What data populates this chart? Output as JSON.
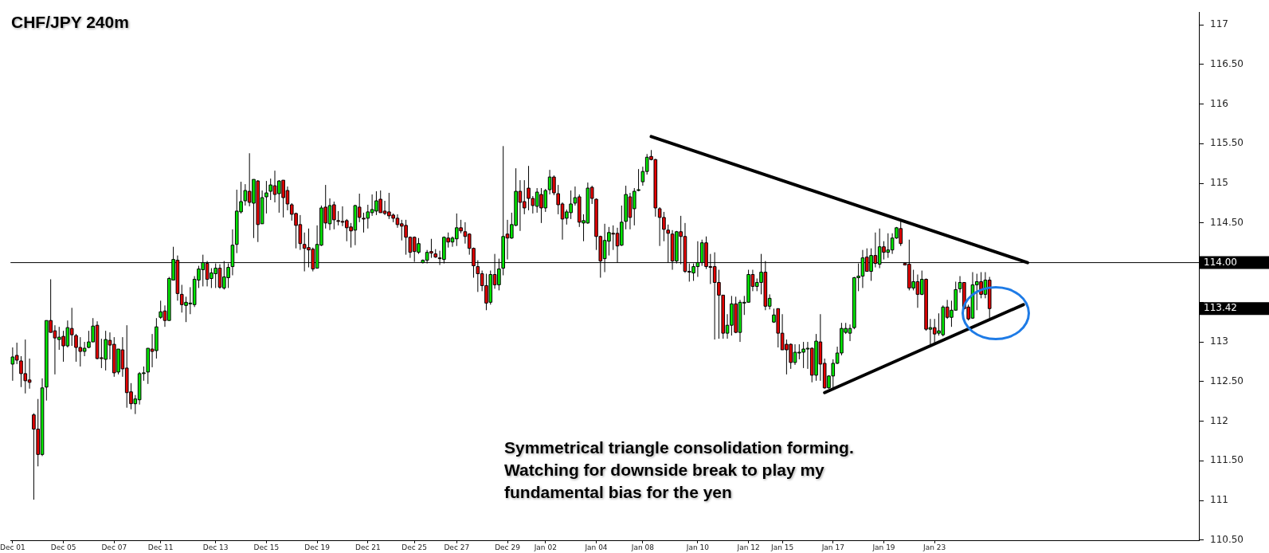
{
  "chart_data": {
    "type": "candlestick",
    "title": "CHF/JPY 240m",
    "annotations": [
      "Symmetrical triangle consolidation forming. Watching for downside break to play my fundamental bias for the yen",
      "113.42"
    ],
    "categories": [
      "Dec 01",
      null,
      null,
      null,
      null,
      null,
      null,
      null,
      null,
      null,
      null,
      null,
      "Dec 05",
      null,
      null,
      null,
      null,
      null,
      null,
      null,
      null,
      null,
      null,
      null,
      "Dec 07",
      null,
      null,
      null,
      null,
      null,
      null,
      null,
      null,
      null,
      null,
      "Dec 11",
      null,
      null,
      null,
      null,
      null,
      null,
      null,
      null,
      null,
      null,
      null,
      null,
      "Dec 13",
      null,
      null,
      null,
      null,
      null,
      null,
      null,
      null,
      null,
      null,
      null,
      "Dec 15",
      null,
      null,
      null,
      null,
      null,
      null,
      null,
      null,
      null,
      null,
      null,
      "Dec 19",
      null,
      null,
      null,
      null,
      null,
      null,
      null,
      null,
      null,
      null,
      null,
      "Dec 21",
      null,
      null,
      null,
      null,
      null,
      null,
      null,
      null,
      null,
      null,
      "Dec 25",
      null,
      null,
      null,
      null,
      null,
      null,
      null,
      null,
      null,
      "Dec 27",
      null,
      null,
      null,
      null,
      null,
      null,
      null,
      null,
      null,
      null,
      null,
      "Dec 29",
      null,
      null,
      null,
      null,
      null,
      null,
      null,
      null,
      "Jan 02",
      null,
      null,
      null,
      null,
      null,
      null,
      null,
      null,
      null,
      null,
      null,
      "Jan 04",
      null,
      null,
      null,
      null,
      null,
      null,
      null,
      null,
      null,
      null,
      "Jan 08",
      null,
      null,
      null,
      null,
      null,
      null,
      null,
      null,
      null,
      null,
      null,
      null,
      "Jan 10",
      null,
      null,
      null,
      null,
      null,
      null,
      null,
      null,
      null,
      null,
      null,
      "Jan 12",
      null,
      null,
      null,
      null,
      null,
      null,
      null,
      "Jan 15",
      null,
      null,
      null,
      null,
      null,
      null,
      null,
      null,
      null,
      null,
      null,
      "Jan 17",
      null,
      null,
      null,
      null,
      null,
      null,
      null,
      null,
      null,
      null,
      null,
      "Jan 19",
      null,
      null,
      null,
      null,
      null,
      null,
      null,
      null,
      null,
      null,
      null,
      "Jan 23",
      null,
      null,
      null,
      null,
      null,
      null,
      null,
      null,
      null,
      null,
      null,
      null,
      null,
      null,
      null,
      null,
      null,
      null,
      null,
      null,
      null,
      null,
      null,
      null,
      null,
      null,
      null,
      null,
      null,
      null,
      null,
      null,
      null,
      null,
      null,
      null,
      null,
      null,
      null,
      null,
      null,
      null,
      null,
      null,
      null,
      null,
      null,
      null,
      null,
      null,
      null,
      null,
      null,
      null,
      null,
      null,
      null,
      null,
      null,
      null,
      null,
      null
    ],
    "ohlc": [
      [
        112.72,
        112.93,
        112.51,
        112.81
      ],
      [
        112.83,
        112.99,
        112.72,
        112.77
      ],
      [
        112.76,
        112.82,
        112.43,
        112.6
      ],
      [
        112.6,
        113.03,
        112.35,
        112.51
      ],
      [
        112.52,
        112.79,
        112.41,
        112.49
      ],
      [
        112.08,
        112.1,
        111.01,
        111.9
      ],
      [
        111.9,
        112.28,
        111.43,
        111.58
      ],
      [
        111.58,
        112.54,
        111.56,
        112.42
      ],
      [
        112.43,
        113.27,
        112.26,
        113.27
      ],
      [
        113.27,
        113.79,
        113.12,
        113.12
      ],
      [
        113.14,
        113.21,
        112.59,
        113.05
      ],
      [
        113.03,
        113.19,
        112.9,
        113.06
      ],
      [
        113.07,
        113.14,
        112.75,
        112.95
      ],
      [
        112.95,
        113.27,
        112.93,
        113.18
      ],
      [
        113.17,
        113.43,
        112.95,
        113.09
      ],
      [
        113.08,
        113.1,
        112.75,
        112.93
      ],
      [
        112.93,
        113.06,
        112.69,
        112.88
      ],
      [
        112.88,
        113.0,
        112.82,
        112.92
      ],
      [
        112.93,
        113.14,
        112.92,
        113.0
      ],
      [
        113.0,
        113.3,
        113.0,
        113.2
      ],
      [
        113.21,
        113.26,
        112.78,
        112.79
      ],
      [
        112.8,
        113.04,
        112.67,
        112.8
      ],
      [
        112.78,
        113.14,
        112.64,
        113.03
      ],
      [
        113.02,
        113.12,
        112.78,
        112.96
      ],
      [
        112.97,
        113.06,
        112.56,
        112.61
      ],
      [
        112.62,
        112.91,
        112.59,
        112.91
      ],
      [
        112.9,
        113.06,
        112.56,
        112.66
      ],
      [
        112.67,
        113.21,
        112.17,
        112.36
      ],
      [
        112.37,
        112.48,
        112.15,
        112.22
      ],
      [
        112.22,
        112.33,
        112.09,
        112.28
      ],
      [
        112.27,
        112.62,
        112.21,
        112.6
      ],
      [
        112.61,
        112.69,
        112.51,
        112.61
      ],
      [
        112.62,
        112.92,
        112.47,
        112.92
      ],
      [
        112.91,
        113.1,
        112.68,
        112.88
      ],
      [
        112.89,
        113.3,
        112.79,
        113.19
      ],
      [
        113.31,
        113.52,
        113.29,
        113.38
      ],
      [
        113.39,
        113.46,
        113.19,
        113.27
      ],
      [
        113.27,
        113.82,
        113.27,
        113.8
      ],
      [
        113.78,
        114.2,
        113.78,
        114.04
      ],
      [
        114.03,
        114.09,
        113.52,
        113.61
      ],
      [
        113.6,
        113.72,
        113.37,
        113.47
      ],
      [
        113.46,
        113.57,
        113.25,
        113.5
      ],
      [
        113.49,
        113.69,
        113.35,
        113.49
      ],
      [
        113.47,
        113.83,
        113.44,
        113.79
      ],
      [
        113.78,
        113.96,
        113.68,
        113.92
      ],
      [
        113.91,
        114.1,
        113.7,
        114.0
      ],
      [
        113.99,
        114.02,
        113.7,
        113.79
      ],
      [
        113.8,
        113.93,
        113.68,
        113.87
      ],
      [
        113.86,
        113.99,
        113.68,
        113.93
      ],
      [
        113.93,
        113.98,
        113.67,
        113.69
      ],
      [
        113.68,
        114.02,
        113.66,
        113.82
      ],
      [
        113.81,
        113.99,
        113.68,
        113.94
      ],
      [
        113.95,
        114.42,
        113.84,
        114.22
      ],
      [
        114.23,
        114.92,
        114.12,
        114.65
      ],
      [
        114.64,
        115.02,
        114.62,
        114.77
      ],
      [
        114.78,
        114.99,
        114.72,
        114.91
      ],
      [
        114.9,
        115.38,
        114.71,
        114.76
      ],
      [
        114.75,
        115.05,
        114.31,
        115.05
      ],
      [
        115.03,
        115.04,
        114.26,
        114.48
      ],
      [
        114.49,
        114.91,
        114.49,
        114.82
      ],
      [
        114.83,
        115.03,
        114.62,
        114.88
      ],
      [
        114.9,
        115.06,
        114.79,
        114.98
      ],
      [
        114.97,
        115.16,
        114.76,
        114.86
      ],
      [
        114.87,
        115.04,
        114.63,
        115.03
      ],
      [
        115.04,
        115.04,
        114.57,
        114.82
      ],
      [
        114.91,
        114.96,
        114.66,
        114.74
      ],
      [
        114.73,
        114.75,
        114.53,
        114.61
      ],
      [
        114.62,
        114.63,
        114.18,
        114.47
      ],
      [
        114.48,
        114.6,
        114.16,
        114.24
      ],
      [
        114.23,
        114.38,
        113.89,
        114.18
      ],
      [
        114.19,
        114.43,
        113.94,
        114.16
      ],
      [
        114.17,
        114.19,
        113.89,
        113.92
      ],
      [
        113.93,
        114.47,
        113.93,
        114.23
      ],
      [
        114.22,
        114.72,
        114.21,
        114.69
      ],
      [
        114.7,
        114.98,
        114.43,
        114.5
      ],
      [
        114.49,
        114.81,
        114.41,
        114.72
      ],
      [
        114.73,
        114.77,
        114.42,
        114.54
      ],
      [
        114.53,
        114.65,
        114.47,
        114.53
      ],
      [
        114.52,
        114.71,
        114.46,
        114.51
      ],
      [
        114.53,
        114.55,
        114.27,
        114.44
      ],
      [
        114.45,
        114.5,
        114.19,
        114.4
      ],
      [
        114.41,
        114.73,
        114.22,
        114.72
      ],
      [
        114.7,
        114.87,
        114.51,
        114.57
      ],
      [
        114.56,
        114.63,
        114.38,
        114.56
      ],
      [
        114.56,
        114.73,
        114.43,
        114.64
      ],
      [
        114.63,
        114.86,
        114.59,
        114.67
      ],
      [
        114.65,
        114.9,
        114.6,
        114.78
      ],
      [
        114.8,
        114.91,
        114.63,
        114.63
      ],
      [
        114.65,
        114.78,
        114.6,
        114.62
      ],
      [
        114.64,
        114.88,
        114.55,
        114.59
      ],
      [
        114.6,
        114.62,
        114.51,
        114.56
      ],
      [
        114.56,
        114.61,
        114.44,
        114.48
      ],
      [
        114.49,
        114.54,
        114.28,
        114.46
      ],
      [
        114.47,
        114.54,
        114.1,
        114.32
      ],
      [
        114.32,
        114.33,
        114.06,
        114.13
      ],
      [
        114.32,
        114.33,
        114.01,
        114.14
      ],
      [
        114.13,
        114.31,
        114.11,
        114.24
      ],
      [
        114.0,
        114.04,
        113.99,
        114.03
      ],
      [
        114.03,
        114.16,
        113.99,
        114.13
      ],
      [
        114.14,
        114.3,
        114.06,
        114.12
      ],
      [
        114.11,
        114.17,
        114.06,
        114.07
      ],
      [
        114.06,
        114.15,
        113.97,
        114.05
      ],
      [
        114.04,
        114.33,
        113.99,
        114.32
      ],
      [
        114.31,
        114.38,
        114.19,
        114.26
      ],
      [
        114.26,
        114.33,
        114.2,
        114.31
      ],
      [
        114.3,
        114.62,
        114.21,
        114.44
      ],
      [
        114.44,
        114.54,
        114.37,
        114.4
      ],
      [
        114.39,
        114.51,
        114.24,
        114.33
      ],
      [
        114.36,
        114.37,
        114.1,
        114.18
      ],
      [
        114.18,
        114.19,
        113.81,
        113.96
      ],
      [
        113.95,
        114.03,
        113.63,
        113.86
      ],
      [
        113.86,
        113.9,
        113.64,
        113.71
      ],
      [
        113.71,
        113.86,
        113.4,
        113.49
      ],
      [
        113.5,
        113.9,
        113.47,
        113.85
      ],
      [
        113.85,
        114.11,
        113.67,
        113.72
      ],
      [
        113.72,
        114.05,
        113.65,
        113.92
      ],
      [
        113.93,
        115.47,
        113.84,
        114.33
      ],
      [
        114.36,
        114.54,
        114.04,
        114.31
      ],
      [
        114.31,
        114.63,
        114.3,
        114.48
      ],
      [
        114.47,
        115.19,
        114.46,
        114.9
      ],
      [
        114.9,
        115.04,
        114.4,
        114.76
      ],
      [
        114.77,
        115.04,
        114.61,
        114.69
      ],
      [
        114.94,
        115.22,
        114.66,
        114.81
      ],
      [
        114.81,
        114.84,
        114.62,
        114.72
      ],
      [
        114.71,
        114.94,
        114.63,
        114.89
      ],
      [
        114.86,
        114.94,
        114.5,
        114.69
      ],
      [
        114.69,
        114.93,
        114.64,
        114.91
      ],
      [
        114.92,
        115.17,
        114.86,
        115.08
      ],
      [
        115.08,
        115.1,
        114.85,
        114.88
      ],
      [
        114.87,
        114.98,
        114.61,
        114.73
      ],
      [
        114.74,
        114.76,
        114.29,
        114.55
      ],
      [
        114.56,
        114.67,
        114.48,
        114.64
      ],
      [
        114.63,
        114.91,
        114.55,
        114.74
      ],
      [
        114.75,
        114.96,
        114.72,
        114.82
      ],
      [
        114.83,
        114.86,
        114.45,
        114.51
      ],
      [
        114.5,
        114.61,
        114.27,
        114.53
      ],
      [
        114.5,
        115.01,
        114.49,
        114.94
      ],
      [
        114.95,
        114.97,
        114.74,
        114.81
      ],
      [
        114.8,
        114.81,
        114.16,
        114.33
      ],
      [
        114.33,
        114.34,
        113.81,
        114.02
      ],
      [
        114.05,
        114.49,
        113.88,
        114.28
      ],
      [
        114.27,
        114.45,
        114.09,
        114.38
      ],
      [
        114.37,
        114.47,
        114.16,
        114.37
      ],
      [
        114.37,
        114.44,
        114.0,
        114.21
      ],
      [
        114.22,
        114.72,
        114.21,
        114.51
      ],
      [
        114.52,
        114.97,
        114.42,
        114.86
      ],
      [
        114.83,
        114.88,
        114.42,
        114.57
      ],
      [
        114.68,
        114.94,
        114.47,
        114.9
      ],
      [
        114.92,
        115.18,
        114.9,
        114.92
      ],
      [
        115.02,
        115.21,
        114.97,
        115.15
      ],
      [
        115.15,
        115.37,
        115.11,
        115.33
      ],
      [
        115.34,
        115.42,
        115.29,
        115.3
      ],
      [
        115.3,
        115.31,
        114.58,
        114.69
      ],
      [
        114.68,
        114.7,
        114.21,
        114.57
      ],
      [
        114.57,
        114.64,
        114.27,
        114.42
      ],
      [
        114.41,
        114.48,
        114.0,
        114.37
      ],
      [
        114.36,
        114.41,
        113.91,
        114.02
      ],
      [
        114.02,
        114.4,
        113.99,
        114.39
      ],
      [
        114.39,
        114.59,
        113.98,
        114.33
      ],
      [
        114.33,
        114.5,
        113.87,
        113.89
      ],
      [
        113.89,
        113.99,
        113.76,
        113.88
      ],
      [
        113.87,
        113.99,
        113.77,
        113.95
      ],
      [
        113.95,
        114.27,
        113.82,
        114.0
      ],
      [
        114.0,
        114.29,
        113.96,
        114.25
      ],
      [
        114.25,
        114.33,
        113.92,
        113.95
      ],
      [
        113.95,
        114.11,
        113.73,
        113.95
      ],
      [
        113.95,
        114.13,
        113.03,
        113.75
      ],
      [
        113.75,
        113.91,
        113.04,
        113.59
      ],
      [
        113.59,
        113.59,
        113.04,
        113.11
      ],
      [
        113.11,
        113.35,
        113.04,
        113.21
      ],
      [
        113.21,
        113.58,
        113.08,
        113.48
      ],
      [
        113.48,
        113.57,
        113.11,
        113.12
      ],
      [
        113.12,
        113.53,
        113.0,
        113.5
      ],
      [
        113.5,
        113.58,
        113.34,
        113.5
      ],
      [
        113.5,
        113.91,
        113.5,
        113.85
      ],
      [
        113.85,
        113.91,
        113.64,
        113.7
      ],
      [
        113.7,
        113.8,
        113.64,
        113.75
      ],
      [
        113.75,
        114.11,
        113.6,
        113.88
      ],
      [
        113.88,
        114.02,
        113.4,
        113.45
      ],
      [
        113.45,
        113.6,
        113.41,
        113.55
      ],
      [
        113.25,
        113.42,
        113.24,
        113.34
      ],
      [
        113.42,
        113.42,
        112.93,
        113.11
      ],
      [
        113.11,
        113.35,
        112.9,
        112.9
      ],
      [
        112.97,
        113.03,
        112.59,
        112.9
      ],
      [
        112.97,
        112.98,
        112.66,
        112.74
      ],
      [
        112.74,
        112.97,
        112.71,
        112.87
      ],
      [
        112.87,
        112.97,
        112.78,
        112.87
      ],
      [
        112.87,
        113.0,
        112.67,
        112.91
      ],
      [
        112.92,
        113.0,
        112.66,
        112.92
      ],
      [
        112.92,
        112.93,
        112.49,
        112.58
      ],
      [
        112.58,
        113.1,
        112.51,
        113.01
      ],
      [
        113.0,
        113.35,
        112.51,
        112.72
      ],
      [
        112.73,
        112.79,
        112.41,
        112.42
      ],
      [
        112.42,
        112.58,
        112.41,
        112.57
      ],
      [
        112.57,
        112.78,
        112.41,
        112.73
      ],
      [
        112.73,
        112.94,
        112.72,
        112.86
      ],
      [
        112.86,
        113.24,
        112.83,
        113.17
      ],
      [
        113.12,
        113.24,
        113.1,
        113.17
      ],
      [
        113.11,
        113.22,
        113.01,
        113.17
      ],
      [
        113.18,
        113.82,
        113.16,
        113.81
      ],
      [
        113.81,
        113.99,
        113.64,
        113.83
      ],
      [
        113.83,
        114.16,
        113.68,
        114.06
      ],
      [
        114.07,
        114.18,
        113.89,
        113.89
      ],
      [
        113.89,
        114.18,
        113.77,
        114.09
      ],
      [
        114.09,
        114.38,
        113.94,
        113.99
      ],
      [
        113.98,
        114.43,
        113.93,
        114.2
      ],
      [
        114.2,
        114.27,
        114.04,
        114.13
      ],
      [
        114.13,
        114.37,
        114.06,
        114.16
      ],
      [
        114.16,
        114.37,
        114.11,
        114.31
      ],
      [
        114.31,
        114.45,
        114.3,
        114.44
      ],
      [
        114.43,
        114.55,
        114.21,
        114.24
      ],
      [
        113.99,
        113.99,
        113.97,
        113.97
      ],
      [
        113.98,
        114.29,
        113.65,
        113.68
      ],
      [
        113.68,
        113.91,
        113.65,
        113.76
      ],
      [
        113.76,
        113.85,
        113.43,
        113.6
      ],
      [
        113.6,
        113.9,
        113.59,
        113.79
      ],
      [
        113.79,
        113.8,
        113.14,
        113.16
      ],
      [
        113.16,
        113.29,
        112.97,
        113.18
      ],
      [
        113.18,
        113.29,
        112.96,
        113.1
      ],
      [
        113.11,
        113.36,
        113.08,
        113.14
      ],
      [
        113.09,
        113.46,
        113.07,
        113.44
      ],
      [
        113.44,
        113.53,
        113.29,
        113.31
      ],
      [
        113.31,
        113.52,
        113.19,
        113.4
      ],
      [
        113.4,
        113.76,
        113.4,
        113.66
      ],
      [
        113.67,
        113.83,
        113.62,
        113.75
      ],
      [
        113.75,
        113.75,
        113.41,
        113.42
      ],
      [
        113.44,
        113.47,
        113.27,
        113.29
      ],
      [
        113.3,
        113.88,
        113.29,
        113.72
      ],
      [
        113.72,
        113.86,
        113.4,
        113.76
      ],
      [
        113.76,
        113.88,
        113.55,
        113.6
      ],
      [
        113.6,
        113.88,
        113.55,
        113.78
      ],
      [
        113.78,
        113.82,
        113.3,
        113.42
      ],
      null,
      null,
      null,
      null,
      null,
      null,
      null,
      null,
      null,
      null,
      null,
      null,
      null,
      null,
      null,
      null,
      null,
      null,
      null,
      null,
      null,
      null,
      null,
      null,
      null,
      null,
      null,
      null,
      null,
      null,
      null,
      null,
      null,
      null,
      null,
      null,
      null,
      null,
      null,
      null,
      null,
      null,
      null,
      null,
      null,
      null,
      null,
      null,
      null
    ],
    "colors": [
      "#00e600",
      "#e60000",
      "#e60000",
      "#e60000",
      "#e60000",
      "#e60000",
      "#e60000",
      "#00e600",
      "#00e600",
      "#e60000",
      "#e60000",
      "#00e600",
      "#e60000",
      "#00e600",
      "#e60000",
      "#e60000",
      "#e60000",
      "#00e600",
      "#00e600",
      "#00e600",
      "#e60000",
      "#e60000",
      "#00e600",
      "#e60000",
      "#e60000",
      "#00e600",
      "#e60000",
      "#e60000",
      "#e60000",
      "#00e600",
      "#00e600",
      "#00e600",
      "#00e600",
      "#e60000",
      "#00e600",
      "#00e600",
      "#e60000",
      "#00e600",
      "#00e600",
      "#e60000",
      "#e60000",
      "#00e600",
      "#00e600",
      "#00e600",
      "#00e600",
      "#00e600",
      "#e60000",
      "#00e600",
      "#00e600",
      "#e60000",
      "#00e600",
      "#00e600",
      "#00e600",
      "#00e600",
      "#00e600",
      "#00e600",
      "#e60000",
      "#00e600",
      "#e60000",
      "#00e600",
      "#00e600",
      "#00e600",
      "#e60000",
      "#00e600",
      "#e60000",
      "#e60000",
      "#e60000",
      "#e60000",
      "#e60000",
      "#e60000",
      "#e60000",
      "#e60000",
      "#00e600",
      "#00e600",
      "#e60000",
      "#00e600",
      "#e60000",
      "#e60000",
      "#e60000",
      "#e60000",
      "#e60000",
      "#00e600",
      "#e60000",
      "#e60000",
      "#00e600",
      "#00e600",
      "#00e600",
      "#e60000",
      "#e60000",
      "#e60000",
      "#e60000",
      "#e60000",
      "#e60000",
      "#e60000",
      "#e60000",
      "#e60000",
      "#00e600",
      "#00e600",
      "#00e600",
      "#e60000",
      "#e60000",
      "#e60000",
      "#00e600",
      "#e60000",
      "#00e600",
      "#00e600",
      "#e60000",
      "#e60000",
      "#e60000",
      "#e60000",
      "#e60000",
      "#e60000",
      "#e60000",
      "#00e600",
      "#e60000",
      "#00e600",
      "#00e600",
      "#e60000",
      "#00e600",
      "#00e600",
      "#e60000",
      "#e60000",
      "#e60000",
      "#e60000",
      "#00e600",
      "#e60000",
      "#00e600",
      "#00e600",
      "#e60000",
      "#e60000",
      "#e60000",
      "#00e600",
      "#00e600",
      "#00e600",
      "#e60000",
      "#00e600",
      "#00e600",
      "#e60000",
      "#e60000",
      "#e60000",
      "#00e600",
      "#00e600",
      "#e60000",
      "#e60000",
      "#00e600",
      "#00e600",
      "#e60000",
      "#00e600",
      "#00e600",
      "#00e600",
      "#00e600",
      "#e60000",
      "#e60000",
      "#e60000",
      "#e60000",
      "#e60000",
      "#e60000",
      "#00e600",
      "#e60000",
      "#e60000",
      "#e60000",
      "#00e600",
      "#00e600",
      "#00e600",
      "#e60000",
      "#e60000",
      "#e60000",
      "#e60000",
      "#e60000",
      "#00e600",
      "#00e600",
      "#e60000",
      "#00e600",
      "#00e600",
      "#00e600",
      "#e60000",
      "#00e600",
      "#00e600",
      "#e60000",
      "#00e600",
      "#00e600",
      "#e60000",
      "#e60000",
      "#e60000",
      "#e60000",
      "#00e600",
      "#00e600",
      "#00e600",
      "#00e600",
      "#e60000",
      "#00e600",
      "#e60000",
      "#e60000",
      "#00e600",
      "#00e600",
      "#00e600",
      "#00e600",
      "#00e600",
      "#00e600",
      "#00e600",
      "#00e600",
      "#00e600",
      "#e60000",
      "#00e600",
      "#e60000",
      "#00e600",
      "#e60000",
      "#00e600",
      "#00e600",
      "#00e600",
      "#e60000",
      "#e60000",
      "#e60000",
      "#00e600",
      "#e60000",
      "#00e600",
      "#e60000",
      "#00e600",
      "#e60000",
      "#00e600",
      "#00e600",
      "#e60000",
      "#00e600",
      "#00e600",
      "#00e600",
      "#e60000",
      "#e60000",
      "#00e600",
      "#00e600",
      "#e60000",
      "#00e600",
      "#e60000",
      null,
      null,
      null,
      null,
      null,
      null,
      null,
      null,
      null,
      null,
      null,
      null,
      null,
      null,
      null,
      null,
      null,
      null,
      null,
      null,
      null,
      null,
      null,
      null,
      null,
      null,
      null,
      null,
      null,
      null,
      null,
      null,
      null,
      null,
      null,
      null,
      null,
      null,
      null,
      null,
      null,
      null,
      null,
      null,
      null,
      null,
      null,
      null,
      null
    ],
    "series": [
      {
        "type": "line",
        "color": "#000000",
        "values": [
          null,
          null,
          null,
          null,
          null,
          null,
          null,
          null,
          null,
          null,
          null,
          null,
          null,
          null,
          null,
          null,
          null,
          null,
          null,
          null,
          null,
          null,
          null,
          null,
          null,
          null,
          null,
          null,
          null,
          null,
          null,
          null,
          null,
          null,
          null,
          null,
          null,
          null,
          null,
          null,
          null,
          null,
          null,
          null,
          null,
          null,
          null,
          null,
          null,
          null,
          null,
          null,
          null,
          null,
          null,
          null,
          null,
          null,
          null,
          null,
          null,
          null,
          null,
          null,
          null,
          null,
          null,
          null,
          null,
          null,
          null,
          null,
          null,
          null,
          null,
          null,
          null,
          null,
          null,
          null,
          null,
          null,
          null,
          null,
          null,
          null,
          null,
          null,
          null,
          null,
          null,
          null,
          null,
          null,
          null,
          null,
          null,
          null,
          null,
          null,
          null,
          null,
          null,
          null,
          null,
          null,
          null,
          null,
          null,
          null,
          null,
          null,
          null,
          null,
          null,
          null,
          null,
          null,
          null,
          null,
          null,
          null,
          null,
          null,
          null,
          null,
          null,
          null,
          null,
          null,
          null,
          null,
          null,
          null,
          null,
          null,
          null,
          null,
          null,
          null,
          null,
          null,
          null,
          null,
          null,
          null,
          null,
          null,
          null,
          null,
          null,
          115.59,
          null,
          null,
          null,
          null,
          null,
          null,
          null,
          null,
          null,
          null,
          null,
          null,
          null,
          null,
          null,
          null,
          null,
          null,
          null,
          null,
          null,
          null,
          null,
          null,
          null,
          null,
          null,
          null,
          null,
          null,
          null,
          null,
          null,
          null,
          null,
          null,
          null,
          null,
          null,
          null,
          null,
          null,
          null,
          null,
          null,
          null,
          null,
          null,
          null,
          null,
          null,
          null,
          null,
          null,
          null,
          null,
          null,
          null,
          null,
          null,
          null,
          null,
          null,
          null,
          null,
          null,
          null,
          null,
          null,
          null,
          null,
          null,
          null,
          null,
          null,
          null,
          null,
          null,
          null,
          null,
          null,
          null,
          null,
          null,
          null,
          null,
          null,
          null,
          114.0,
          null,
          null,
          null,
          null,
          null,
          null,
          null,
          null,
          null,
          null,
          null,
          null,
          null,
          null,
          null,
          null,
          null,
          null,
          null,
          null,
          null,
          null,
          null,
          null,
          null,
          null,
          null,
          null,
          null,
          null,
          null,
          null,
          null,
          null,
          null,
          null,
          null,
          null,
          null,
          null
        ]
      },
      {
        "type": "line",
        "color": "#000000",
        "values": [
          null,
          null,
          null,
          null,
          null,
          null,
          null,
          null,
          null,
          null,
          null,
          null,
          null,
          null,
          null,
          null,
          null,
          null,
          null,
          null,
          null,
          null,
          null,
          null,
          null,
          null,
          null,
          null,
          null,
          null,
          null,
          null,
          null,
          null,
          null,
          null,
          null,
          null,
          null,
          null,
          null,
          null,
          null,
          null,
          null,
          null,
          null,
          null,
          null,
          null,
          null,
          null,
          null,
          null,
          null,
          null,
          null,
          null,
          null,
          null,
          null,
          null,
          null,
          null,
          null,
          null,
          null,
          null,
          null,
          null,
          null,
          null,
          null,
          null,
          null,
          null,
          null,
          null,
          null,
          null,
          null,
          null,
          null,
          null,
          null,
          null,
          null,
          null,
          null,
          null,
          null,
          null,
          null,
          null,
          null,
          null,
          null,
          null,
          null,
          null,
          null,
          null,
          null,
          null,
          null,
          null,
          null,
          null,
          null,
          null,
          null,
          null,
          null,
          null,
          null,
          null,
          null,
          null,
          null,
          null,
          null,
          null,
          null,
          null,
          null,
          null,
          null,
          null,
          null,
          null,
          null,
          null,
          null,
          null,
          null,
          null,
          null,
          null,
          null,
          null,
          null,
          null,
          null,
          null,
          null,
          null,
          null,
          null,
          null,
          null,
          null,
          null,
          null,
          null,
          null,
          null,
          null,
          null,
          null,
          null,
          null,
          null,
          null,
          null,
          null,
          null,
          null,
          null,
          null,
          null,
          null,
          null,
          null,
          null,
          null,
          null,
          null,
          null,
          null,
          null,
          null,
          null,
          null,
          null,
          null,
          null,
          null,
          null,
          null,
          null,
          null,
          null,
          112.36,
          null,
          null,
          null,
          null,
          null,
          null,
          null,
          null,
          null,
          null,
          null,
          null,
          null,
          null,
          null,
          null,
          null,
          null,
          null,
          null,
          null,
          null,
          null,
          null,
          null,
          null,
          null,
          null,
          null,
          null,
          null,
          null,
          null,
          null,
          null,
          null,
          null,
          null,
          null,
          null,
          null,
          null,
          null,
          null,
          null,
          null,
          113.47,
          null,
          null,
          null,
          null,
          null,
          null,
          null,
          null,
          null,
          null,
          null,
          null,
          null,
          null,
          null,
          null,
          null,
          null,
          null,
          null,
          null,
          null,
          null,
          null,
          null,
          null,
          null,
          null,
          null,
          null,
          null,
          null,
          null,
          null,
          null,
          null,
          null,
          null,
          null,
          null,
          null
        ]
      }
    ],
    "ylim": [
      110.49,
      117.16
    ],
    "yticks": [
      {
        "value": 110.5,
        "label": "110.50"
      },
      111,
      {
        "value": 111.5,
        "label": "111.50"
      },
      112,
      {
        "value": 112.5,
        "label": "112.50"
      },
      113,
      {
        "value": 113.5,
        "label": null
      },
      {
        "value": 114,
        "label": null
      },
      {
        "value": 114.5,
        "label": "114.50"
      },
      115,
      {
        "value": 115.5,
        "label": "115.50"
      },
      116,
      {
        "value": 116.5,
        "label": "116.50"
      },
      117
    ],
    "ref_lines": [
      {
        "axis": "y",
        "value": 114,
        "label": "114.00",
        "color": "#000000"
      }
    ]
  }
}
